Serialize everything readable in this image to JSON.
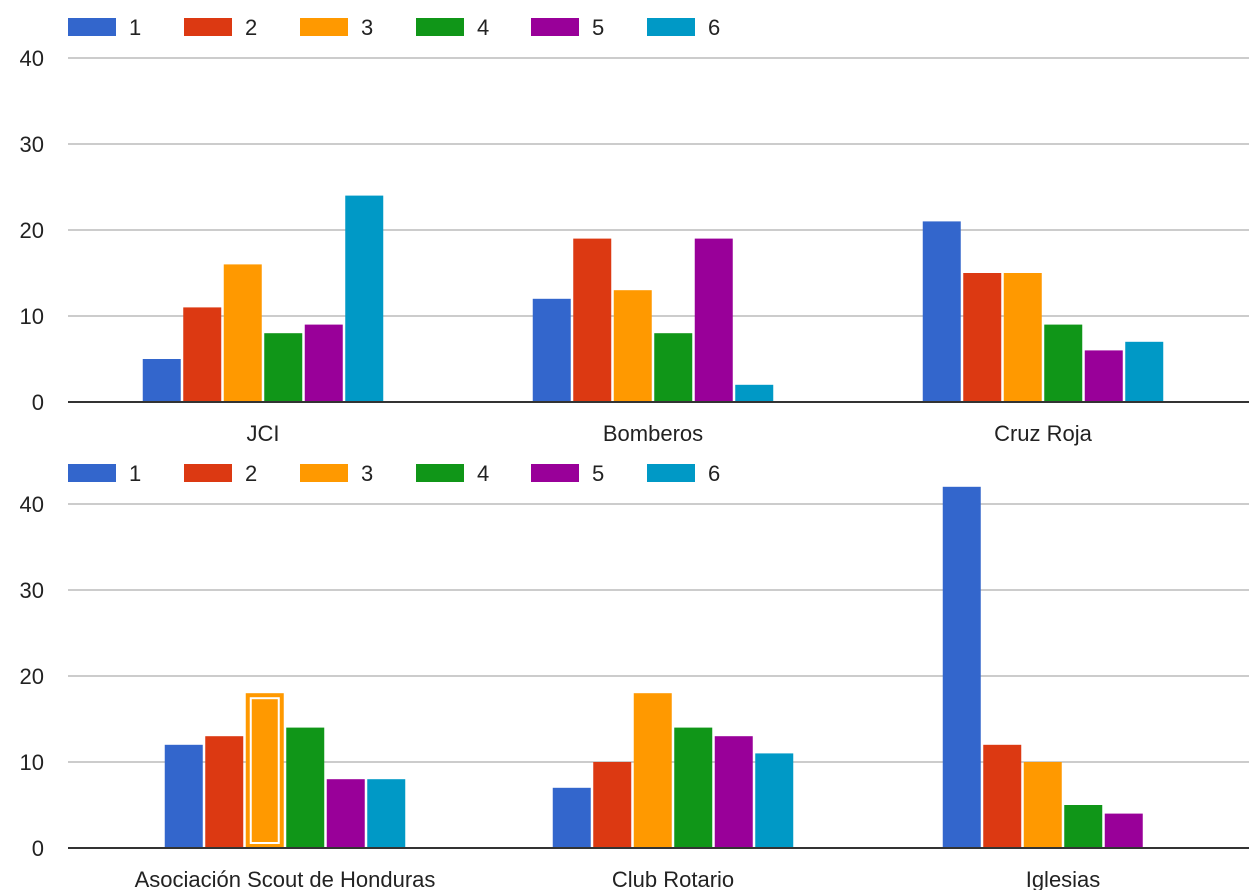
{
  "chart_data": [
    {
      "type": "bar",
      "categories": [
        "JCI",
        "Bomberos",
        "Cruz Roja"
      ],
      "series": [
        {
          "name": "1",
          "color": "#3366cc",
          "values": [
            5,
            12,
            21
          ]
        },
        {
          "name": "2",
          "color": "#dc3912",
          "values": [
            11,
            19,
            15
          ]
        },
        {
          "name": "3",
          "color": "#ff9900",
          "values": [
            16,
            13,
            15
          ]
        },
        {
          "name": "4",
          "color": "#109618",
          "values": [
            8,
            8,
            9
          ]
        },
        {
          "name": "5",
          "color": "#990099",
          "values": [
            9,
            19,
            6
          ]
        },
        {
          "name": "6",
          "color": "#0099c6",
          "values": [
            24,
            2,
            7
          ]
        }
      ],
      "yticks": [
        "0",
        "10",
        "20",
        "30",
        "40"
      ],
      "ylim": [
        0,
        40
      ],
      "grid": true,
      "legend": "top-left"
    },
    {
      "type": "bar",
      "categories": [
        "Asociación Scout de Honduras",
        "Club Rotario",
        "Iglesias"
      ],
      "series": [
        {
          "name": "1",
          "color": "#3366cc",
          "values": [
            12,
            7,
            42
          ]
        },
        {
          "name": "2",
          "color": "#dc3912",
          "values": [
            13,
            10,
            12
          ]
        },
        {
          "name": "3",
          "color": "#ff9900",
          "values": [
            18,
            18,
            10
          ]
        },
        {
          "name": "4",
          "color": "#109618",
          "values": [
            14,
            14,
            5
          ]
        },
        {
          "name": "5",
          "color": "#990099",
          "values": [
            8,
            13,
            4
          ]
        },
        {
          "name": "6",
          "color": "#0099c6",
          "values": [
            8,
            11,
            0
          ]
        }
      ],
      "yticks": [
        "0",
        "10",
        "20",
        "30",
        "40"
      ],
      "ylim": [
        0,
        40
      ],
      "grid": true,
      "legend": "top-left",
      "highlighted": {
        "series": "3",
        "category": "Asociación Scout de Honduras"
      }
    }
  ]
}
